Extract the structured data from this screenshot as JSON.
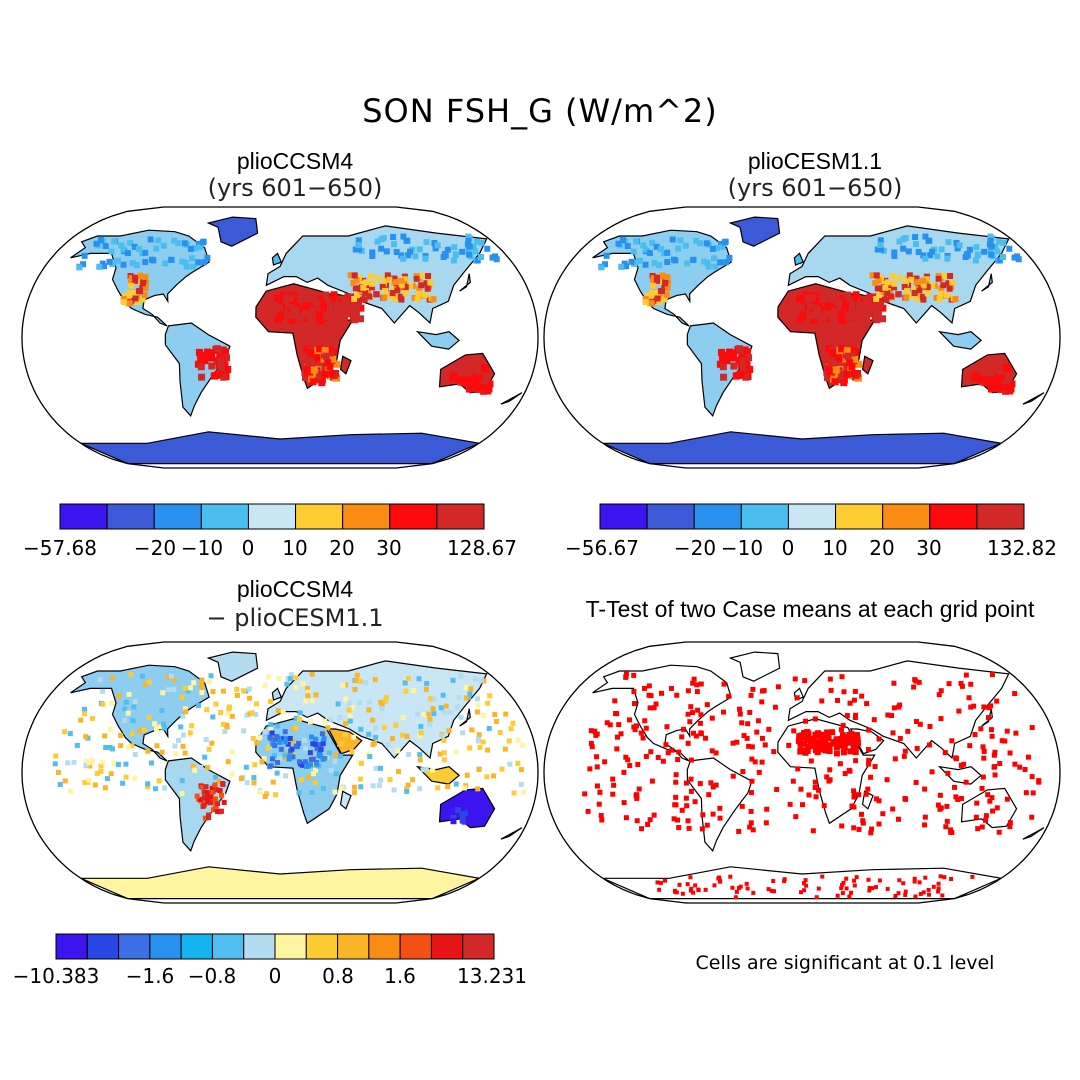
{
  "figure_title": "SON FSH_G (W/m^2)",
  "panels": {
    "top_left": {
      "title": "plioCCSM4",
      "subtitle": "(yrs 601−650)"
    },
    "top_right": {
      "title": "plioCESM1.1",
      "subtitle": "(yrs 601−650)"
    },
    "bottom_left": {
      "title": "plioCCSM4",
      "subtitle": "− plioCESM1.1"
    },
    "bottom_right": {
      "title": "T-Test of two Case means at each grid point",
      "note": "Cells are significant at 0.1 level"
    }
  },
  "colorbars": {
    "cb1": {
      "colors": [
        "#3c14f0",
        "#3c5ad8",
        "#2891f0",
        "#4bbef0",
        "#c8e6f5",
        "#fccc32",
        "#fa8c14",
        "#fa0a0a",
        "#d22828"
      ],
      "labels": [
        "−57.68",
        "−20",
        "−10",
        "0",
        "10",
        "20",
        "30",
        "128.67"
      ]
    },
    "cb2": {
      "colors": [
        "#3c14f0",
        "#3c5ad8",
        "#2891f0",
        "#4bbef0",
        "#c8e6f5",
        "#fccc32",
        "#fa8c14",
        "#fa0a0a",
        "#d22828"
      ],
      "labels": [
        "−56.67",
        "−20",
        "−10",
        "0",
        "10",
        "20",
        "30",
        "132.82"
      ]
    },
    "cb3": {
      "colors": [
        "#3c14f0",
        "#2846e6",
        "#3c6ee6",
        "#2891f0",
        "#14b4f0",
        "#50bef0",
        "#b4dcf0",
        "#fff5a0",
        "#fccc32",
        "#fab428",
        "#fa8c14",
        "#f55014",
        "#e61414",
        "#d22828"
      ],
      "labels": [
        "−10.383",
        "−1.6",
        "−0.8",
        "0",
        "0.8",
        "1.6",
        "13.231"
      ]
    }
  },
  "colors": {
    "land_cold": "#4bbef0",
    "land_warm": "#d22828",
    "significant": "#ff0000",
    "outline": "#000000"
  }
}
